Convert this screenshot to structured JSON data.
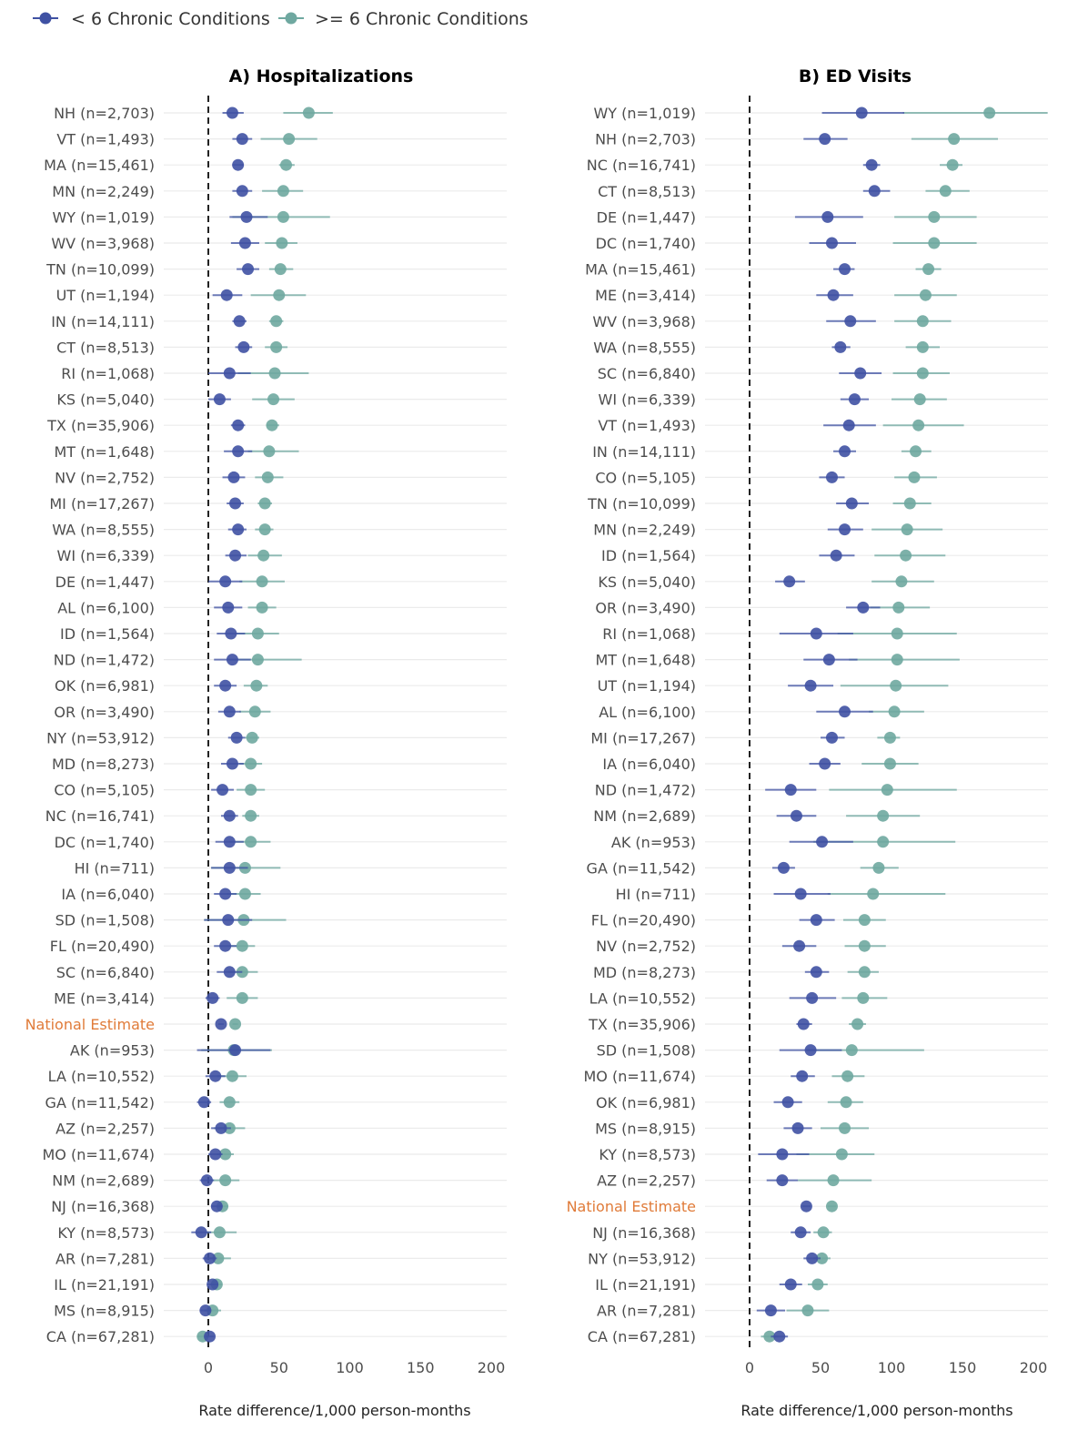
{
  "chart_data": {
    "type": "forest",
    "legend": {
      "position": "top-left",
      "items": [
        {
          "label": "< 6 Chronic Conditions",
          "color": "#3F51A3"
        },
        {
          "label": ">= 6 Chronic Conditions",
          "color": "#6FA8A0"
        }
      ]
    },
    "highlight_color": "#E07B39",
    "reference_line": 0,
    "panels": [
      {
        "title": "A) Hospitalizations",
        "xlabel": "Rate difference/1,000 person-months",
        "xlim": [
          -30,
          210
        ],
        "ticks": [
          0,
          50,
          100,
          150,
          200
        ],
        "categories": [
          "NH (n=2,703)",
          "VT (n=1,493)",
          "MA (n=15,461)",
          "MN (n=2,249)",
          "WY (n=1,019)",
          "WV (n=3,968)",
          "TN (n=10,099)",
          "UT (n=1,194)",
          "IN (n=14,111)",
          "CT (n=8,513)",
          "RI (n=1,068)",
          "KS (n=5,040)",
          "TX (n=35,906)",
          "MT (n=1,648)",
          "NV (n=2,752)",
          "MI (n=17,267)",
          "WA (n=8,555)",
          "WI (n=6,339)",
          "DE (n=1,447)",
          "AL (n=6,100)",
          "ID (n=1,564)",
          "ND (n=1,472)",
          "OK (n=6,981)",
          "OR (n=3,490)",
          "NY (n=53,912)",
          "MD (n=8,273)",
          "CO (n=5,105)",
          "NC (n=16,741)",
          "DC (n=1,740)",
          "HI (n=711)",
          "IA (n=6,040)",
          "SD (n=1,508)",
          "FL (n=20,490)",
          "SC (n=6,840)",
          "ME (n=3,414)",
          "National Estimate",
          "AK (n=953)",
          "LA (n=10,552)",
          "GA (n=11,542)",
          "AZ (n=2,257)",
          "MO (n=11,674)",
          "NM (n=2,689)",
          "NJ (n=16,368)",
          "KY (n=8,573)",
          "AR (n=7,281)",
          "IL (n=21,191)",
          "MS (n=8,915)",
          "CA (n=67,281)"
        ],
        "series": [
          {
            "name": "< 6 Chronic Conditions",
            "values": [
              17,
              24,
              21,
              24,
              27,
              26,
              28,
              13,
              22,
              25,
              15,
              8,
              21,
              21,
              18,
              19,
              21,
              19,
              12,
              14,
              16,
              17,
              12,
              15,
              20,
              17,
              10,
              15,
              15,
              15,
              12,
              14,
              12,
              15,
              3,
              9,
              19,
              5,
              -3,
              9,
              5,
              -1,
              6,
              -5,
              1,
              3,
              -2,
              1
            ],
            "lo": [
              10,
              17,
              17,
              17,
              15,
              16,
              20,
              3,
              17,
              19,
              0,
              0,
              16,
              11,
              10,
              13,
              14,
              12,
              0,
              4,
              6,
              4,
              4,
              7,
              14,
              9,
              2,
              9,
              5,
              2,
              4,
              -3,
              4,
              6,
              -2,
              7,
              -8,
              -2,
              -8,
              2,
              0,
              -6,
              2,
              -12,
              -4,
              -1,
              -6,
              -2
            ],
            "hi": [
              25,
              31,
              25,
              31,
              42,
              36,
              36,
              24,
              27,
              31,
              30,
              16,
              26,
              31,
              26,
              25,
              27,
              27,
              24,
              24,
              26,
              30,
              20,
              23,
              26,
              25,
              18,
              21,
              25,
              28,
              20,
              31,
              20,
              24,
              8,
              11,
              44,
              12,
              2,
              16,
              10,
              4,
              10,
              2,
              6,
              7,
              2,
              4
            ]
          },
          {
            "name": ">= 6 Chronic Conditions",
            "values": [
              71,
              57,
              55,
              53,
              53,
              52,
              51,
              50,
              48,
              48,
              47,
              46,
              45,
              43,
              42,
              40,
              40,
              39,
              38,
              38,
              35,
              35,
              34,
              33,
              31,
              30,
              30,
              30,
              30,
              26,
              26,
              25,
              24,
              24,
              24,
              19,
              18,
              17,
              15,
              15,
              12,
              12,
              10,
              8,
              7,
              6,
              3,
              -4
            ],
            "lo": [
              53,
              37,
              50,
              38,
              17,
              40,
              43,
              30,
              43,
              40,
              21,
              31,
              41,
              28,
              33,
              35,
              33,
              28,
              22,
              28,
              20,
              15,
              25,
              22,
              26,
              22,
              20,
              24,
              15,
              2,
              13,
              -3,
              15,
              14,
              13,
              17,
              -5,
              6,
              8,
              4,
              6,
              2,
              6,
              -2,
              -2,
              2,
              -3,
              -8
            ],
            "hi": [
              88,
              77,
              61,
              67,
              86,
              63,
              60,
              69,
              53,
              56,
              71,
              61,
              50,
              64,
              53,
              45,
              46,
              52,
              54,
              48,
              50,
              66,
              42,
              44,
              36,
              38,
              40,
              36,
              44,
              51,
              37,
              55,
              33,
              35,
              35,
              21,
              45,
              27,
              22,
              26,
              18,
              22,
              14,
              20,
              16,
              10,
              9,
              0
            ]
          }
        ]
      },
      {
        "title": "B) ED Visits",
        "xlabel": "Rate difference/1,000 person-months",
        "xlim": [
          -30,
          210
        ],
        "ticks": [
          0,
          50,
          100,
          150,
          200
        ],
        "categories": [
          "WY (n=1,019)",
          "NH (n=2,703)",
          "NC (n=16,741)",
          "CT (n=8,513)",
          "DE (n=1,447)",
          "DC (n=1,740)",
          "MA (n=15,461)",
          "ME (n=3,414)",
          "WV (n=3,968)",
          "WA (n=8,555)",
          "SC (n=6,840)",
          "WI (n=6,339)",
          "VT (n=1,493)",
          "IN (n=14,111)",
          "CO (n=5,105)",
          "TN (n=10,099)",
          "MN (n=2,249)",
          "ID (n=1,564)",
          "KS (n=5,040)",
          "OR (n=3,490)",
          "RI (n=1,068)",
          "MT (n=1,648)",
          "UT (n=1,194)",
          "AL (n=6,100)",
          "MI (n=17,267)",
          "IA (n=6,040)",
          "ND (n=1,472)",
          "NM (n=2,689)",
          "AK (n=953)",
          "GA (n=11,542)",
          "HI (n=711)",
          "FL (n=20,490)",
          "NV (n=2,752)",
          "MD (n=8,273)",
          "LA (n=10,552)",
          "TX (n=35,906)",
          "SD (n=1,508)",
          "MO (n=11,674)",
          "OK (n=6,981)",
          "MS (n=8,915)",
          "KY (n=8,573)",
          "AZ (n=2,257)",
          "National Estimate",
          "NJ (n=16,368)",
          "NY (n=53,912)",
          "IL (n=21,191)",
          "AR (n=7,281)",
          "CA (n=67,281)"
        ],
        "series": [
          {
            "name": "< 6 Chronic Conditions",
            "values": [
              79,
              53,
              86,
              88,
              55,
              58,
              67,
              59,
              71,
              64,
              78,
              74,
              70,
              67,
              58,
              72,
              67,
              61,
              28,
              80,
              47,
              56,
              43,
              67,
              58,
              53,
              29,
              33,
              51,
              24,
              36,
              47,
              35,
              47,
              44,
              38,
              43,
              37,
              27,
              34,
              23,
              23,
              40,
              36,
              44,
              29,
              15,
              21
            ],
            "lo": [
              51,
              38,
              80,
              80,
              32,
              42,
              59,
              47,
              54,
              58,
              63,
              64,
              52,
              59,
              49,
              61,
              55,
              49,
              18,
              68,
              21,
              38,
              27,
              47,
              50,
              42,
              11,
              19,
              28,
              16,
              17,
              35,
              23,
              39,
              28,
              33,
              21,
              29,
              17,
              24,
              6,
              12,
              37,
              29,
              38,
              21,
              5,
              15
            ],
            "hi": [
              109,
              69,
              92,
              99,
              80,
              75,
              74,
              73,
              89,
              71,
              93,
              84,
              89,
              75,
              67,
              84,
              80,
              74,
              39,
              92,
              73,
              76,
              59,
              87,
              67,
              64,
              47,
              47,
              73,
              32,
              57,
              60,
              47,
              56,
              61,
              44,
              65,
              46,
              37,
              44,
              42,
              34,
              43,
              43,
              50,
              37,
              25,
              27
            ]
          },
          {
            "name": ">= 6 Chronic Conditions",
            "values": [
              169,
              144,
              143,
              138,
              130,
              130,
              126,
              124,
              122,
              122,
              122,
              120,
              119,
              117,
              116,
              113,
              111,
              110,
              107,
              105,
              104,
              104,
              103,
              102,
              99,
              99,
              97,
              94,
              94,
              91,
              87,
              81,
              81,
              81,
              80,
              76,
              72,
              69,
              68,
              67,
              65,
              59,
              58,
              52,
              51,
              48,
              41,
              14
            ],
            "lo": [
              108,
              114,
              134,
              124,
              102,
              101,
              117,
              102,
              102,
              110,
              101,
              100,
              94,
              107,
              102,
              101,
              86,
              88,
              86,
              85,
              62,
              70,
              64,
              84,
              90,
              79,
              56,
              68,
              45,
              78,
              55,
              66,
              67,
              69,
              65,
              70,
              40,
              58,
              55,
              50,
              33,
              34,
              55,
              45,
              45,
              41,
              26,
              8
            ],
            "hi": [
              210,
              175,
              150,
              155,
              160,
              160,
              135,
              146,
              142,
              134,
              141,
              139,
              151,
              128,
              132,
              128,
              136,
              138,
              130,
              127,
              146,
              148,
              140,
              123,
              106,
              119,
              146,
              120,
              145,
              105,
              138,
              96,
              96,
              91,
              97,
              82,
              123,
              81,
              80,
              84,
              88,
              86,
              61,
              58,
              57,
              55,
              56,
              20
            ]
          }
        ]
      }
    ]
  }
}
